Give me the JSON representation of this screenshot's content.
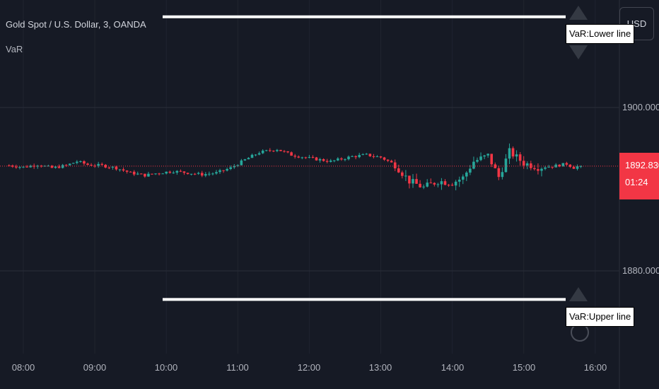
{
  "legend": {
    "symbol": "Gold Spot / U.S. Dollar, 3, OANDA",
    "indicator": "VaR"
  },
  "toolbar": {
    "currency": "USD"
  },
  "price_axis": {
    "labels": [
      "1900.000",
      "1880.000"
    ]
  },
  "time_axis": {
    "labels": [
      "08:00",
      "09:00",
      "10:00",
      "11:00",
      "12:00",
      "13:00",
      "14:00",
      "15:00",
      "16:00"
    ]
  },
  "last_price": {
    "value": "1892.830",
    "countdown": "01:24"
  },
  "var_lines": {
    "lower_label": "VaR:Lower line",
    "upper_label": "VaR:Upper line",
    "lower_price": 1911.1,
    "upper_price": 1876.5
  },
  "colors": {
    "background": "#161a25",
    "up": "#26a69a",
    "down": "#f23645",
    "grid": "#2a2e39",
    "var_line": "#ffffff"
  },
  "chart_data": {
    "type": "candlestick",
    "title": "Gold Spot / U.S. Dollar, 3, OANDA",
    "interval": "3 minutes",
    "y_range": [
      1871.4,
      1913.0
    ],
    "x_range_hours": [
      7.8,
      16.2
    ],
    "last_price": 1892.83,
    "close_path": [
      [
        7.8,
        1892.9
      ],
      [
        8.0,
        1892.7
      ],
      [
        8.2,
        1893.0
      ],
      [
        8.4,
        1892.6
      ],
      [
        8.6,
        1892.9
      ],
      [
        8.75,
        1893.4
      ],
      [
        8.9,
        1893.0
      ],
      [
        9.1,
        1892.9
      ],
      [
        9.3,
        1892.6
      ],
      [
        9.5,
        1892.0
      ],
      [
        9.7,
        1891.7
      ],
      [
        9.9,
        1892.0
      ],
      [
        10.1,
        1892.2
      ],
      [
        10.3,
        1892.0
      ],
      [
        10.5,
        1891.8
      ],
      [
        10.7,
        1892.0
      ],
      [
        10.9,
        1892.6
      ],
      [
        11.1,
        1893.6
      ],
      [
        11.3,
        1894.5
      ],
      [
        11.55,
        1894.9
      ],
      [
        11.75,
        1894.2
      ],
      [
        12.0,
        1893.8
      ],
      [
        12.3,
        1893.4
      ],
      [
        12.6,
        1894.0
      ],
      [
        12.8,
        1894.2
      ],
      [
        13.0,
        1893.9
      ],
      [
        13.2,
        1893.0
      ],
      [
        13.4,
        1891.0
      ],
      [
        13.6,
        1890.2
      ],
      [
        13.8,
        1891.0
      ],
      [
        14.0,
        1890.8
      ],
      [
        14.15,
        1891.4
      ],
      [
        14.3,
        1893.4
      ],
      [
        14.5,
        1894.1
      ],
      [
        14.65,
        1891.5
      ],
      [
        14.8,
        1894.6
      ],
      [
        15.0,
        1893.2
      ],
      [
        15.2,
        1892.7
      ],
      [
        15.4,
        1892.8
      ],
      [
        15.6,
        1893.1
      ],
      [
        15.75,
        1892.4
      ],
      [
        15.8,
        1892.83
      ]
    ]
  }
}
